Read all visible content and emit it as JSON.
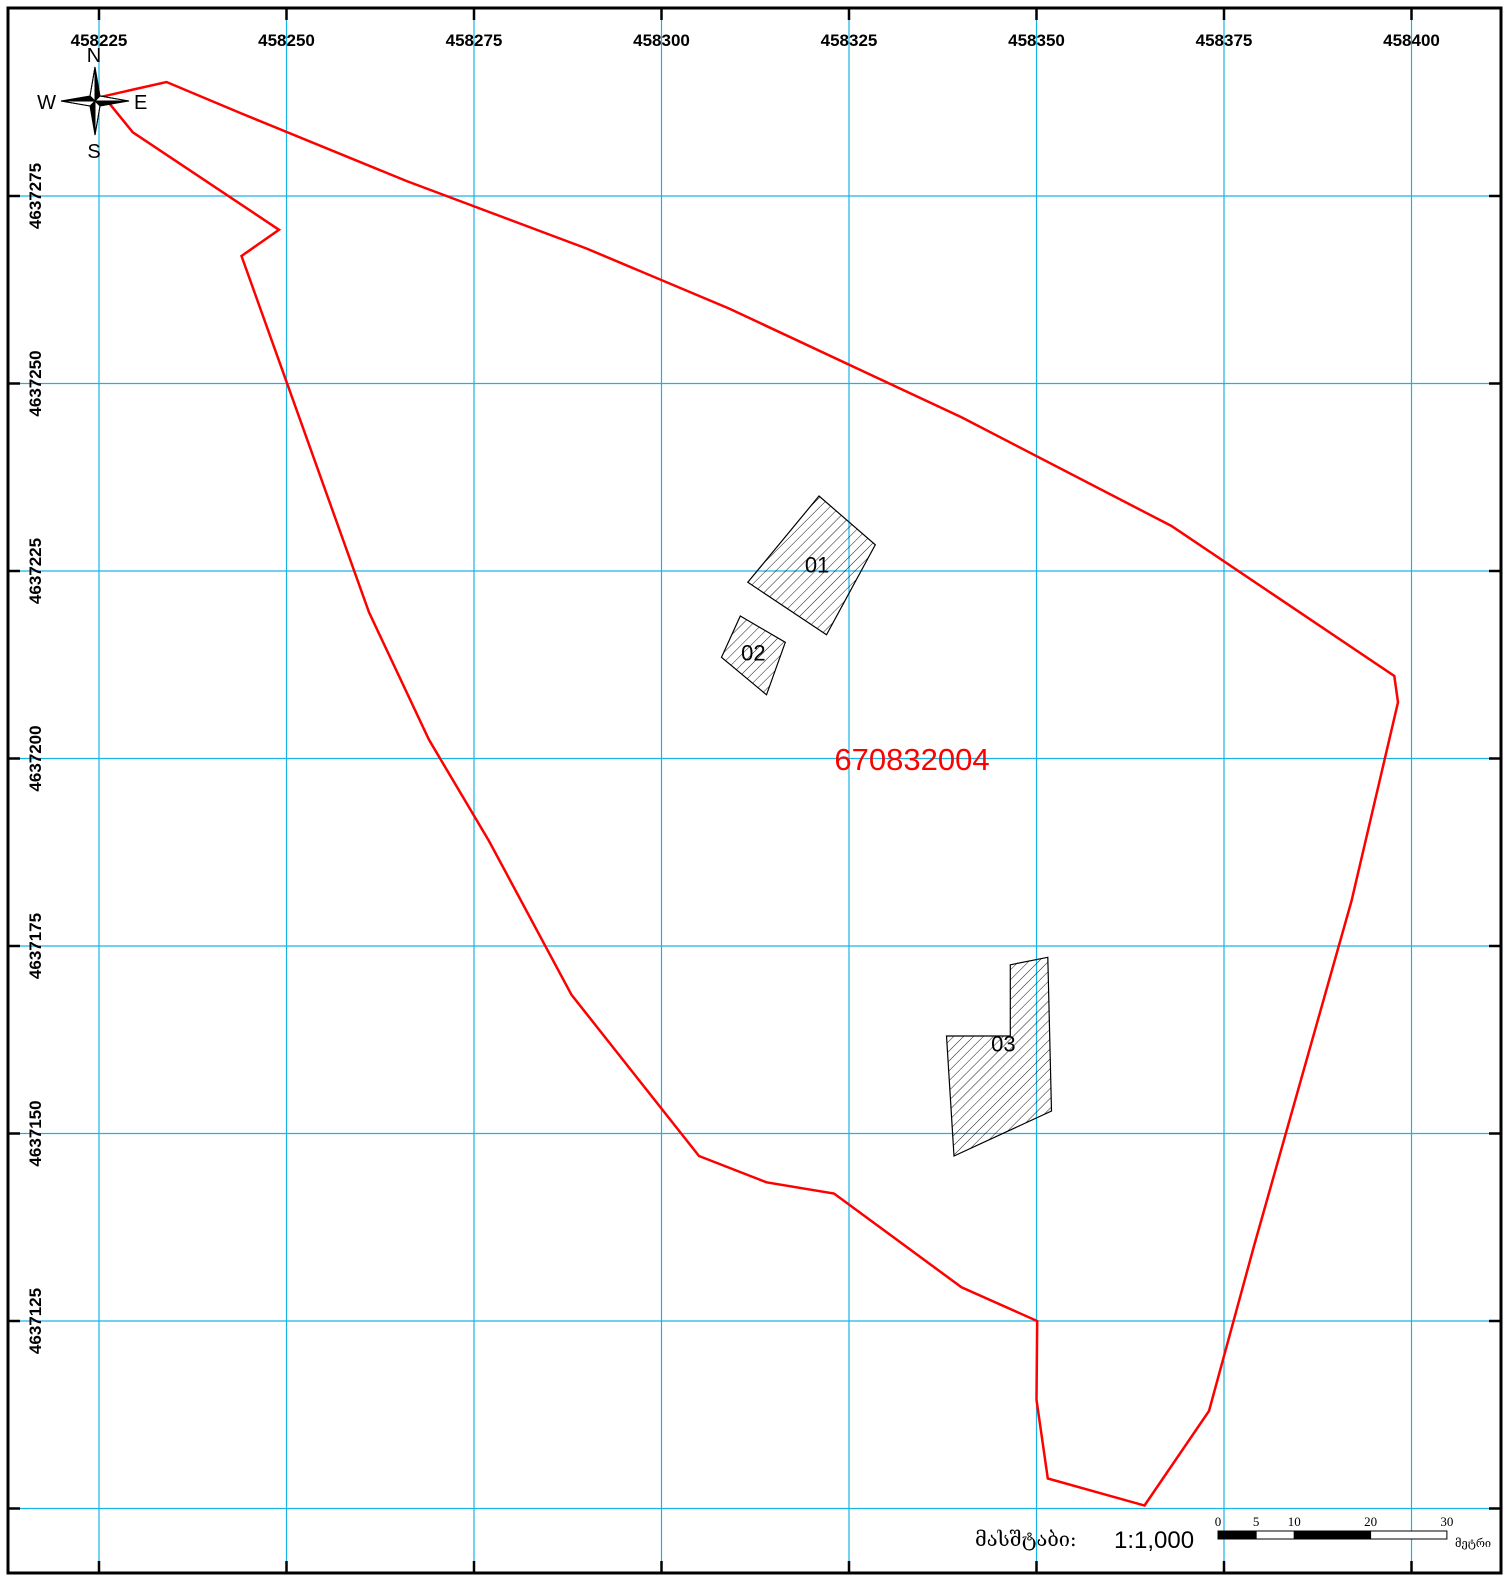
{
  "map": {
    "grid": {
      "x_ticks": [
        458225,
        458250,
        458275,
        458300,
        458325,
        458350,
        458375,
        458400
      ],
      "y_ticks": [
        4637275,
        4637250,
        4637225,
        4637200,
        4637175,
        4637150,
        4637125,
        4637100
      ],
      "x_labels": [
        "458225",
        "458250",
        "458275",
        "458300",
        "458325",
        "458350",
        "458375",
        "458400"
      ],
      "y_labels": [
        "4637275",
        "4637250",
        "4637225",
        "4637200",
        "4637175",
        "4637150",
        "4637125"
      ]
    },
    "compass": {
      "north": "N",
      "south": "S",
      "east": "E",
      "west": "W"
    },
    "parcel": {
      "label": "670832004",
      "color": "#ff0000",
      "boundary": [
        [
          458225.6,
          4637288.3
        ],
        [
          458234.0,
          4637290.2
        ],
        [
          458244.0,
          4637286.0
        ],
        [
          458266.0,
          4637277.0
        ],
        [
          458290.0,
          4637268.0
        ],
        [
          458309.0,
          4637260.0
        ],
        [
          458340.0,
          4637245.5
        ],
        [
          458368.0,
          4637231.0
        ],
        [
          458397.7,
          4637211.0
        ],
        [
          458398.2,
          4637207.5
        ],
        [
          458392.0,
          4637181.0
        ],
        [
          458379.0,
          4637135.0
        ],
        [
          458373.0,
          4637113.0
        ],
        [
          458364.4,
          4637100.4
        ],
        [
          458351.5,
          4637104.0
        ],
        [
          458350.0,
          4637114.5
        ],
        [
          458350.1,
          4637125.0
        ],
        [
          458340.0,
          4637129.5
        ],
        [
          458323.0,
          4637142.0
        ],
        [
          458314.0,
          4637143.5
        ],
        [
          458305.0,
          4637147.0
        ],
        [
          458288.0,
          4637168.5
        ],
        [
          458277.0,
          4637189.0
        ],
        [
          458269.0,
          4637202.5
        ],
        [
          458261.0,
          4637219.5
        ],
        [
          458244.0,
          4637267.0
        ],
        [
          458249.0,
          4637270.5
        ],
        [
          458229.5,
          4637283.5
        ]
      ]
    },
    "buildings": [
      {
        "label": "01",
        "polygon": [
          [
            458321.0,
            4637235.0
          ],
          [
            458328.5,
            4637228.5
          ],
          [
            458322.0,
            4637216.5
          ],
          [
            458311.5,
            4637223.5
          ]
        ]
      },
      {
        "label": "02",
        "polygon": [
          [
            458310.5,
            4637219.0
          ],
          [
            458316.5,
            4637215.5
          ],
          [
            458314.0,
            4637208.5
          ],
          [
            458308.0,
            4637213.5
          ]
        ]
      },
      {
        "label": "03",
        "polygon": [
          [
            458346.5,
            4637172.5
          ],
          [
            458351.5,
            4637173.5
          ],
          [
            458352.0,
            4637153.0
          ],
          [
            458339.0,
            4637147.0
          ],
          [
            458338.0,
            4637163.0
          ],
          [
            458346.5,
            4637163.0
          ]
        ]
      }
    ],
    "scale": {
      "caption": "მასშტაბი:",
      "value": "1:1,000",
      "ticks": [
        "0",
        "5",
        "10",
        "20",
        "30"
      ],
      "unit": "მეტრი"
    },
    "colors": {
      "grid": "#19b4e6",
      "building_hatch": "#000000",
      "frame": "#000000"
    }
  }
}
